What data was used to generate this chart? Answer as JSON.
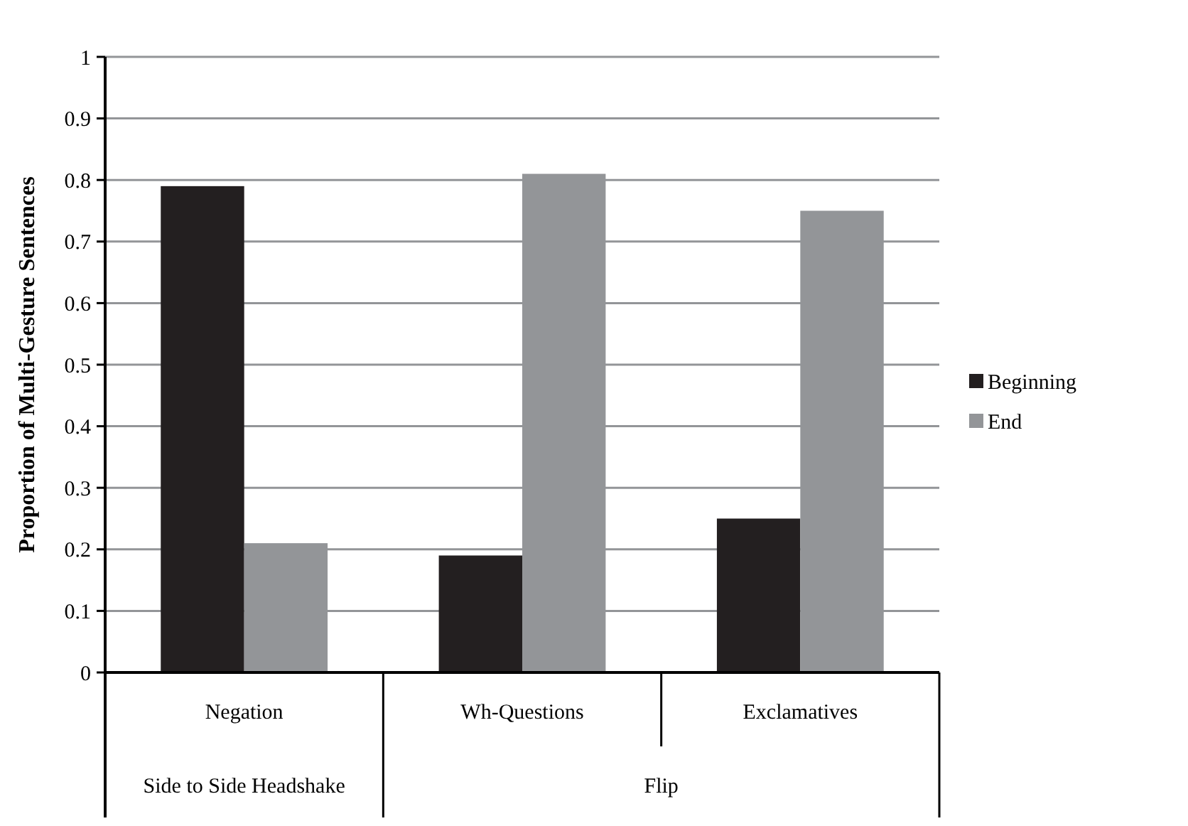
{
  "chart_data": {
    "type": "bar",
    "ylabel": "Proportion of Multi-Gesture Sentences",
    "categories": [
      "Negation",
      "Wh-Questions",
      "Exclamatives"
    ],
    "series": [
      {
        "name": "Beginning",
        "color": "#231f20",
        "values": [
          0.79,
          0.19,
          0.25
        ]
      },
      {
        "name": "End",
        "color": "#939598",
        "values": [
          0.21,
          0.81,
          0.75
        ]
      }
    ],
    "annotations": [
      "Side to Side Headshake",
      "Flip"
    ],
    "ylim": [
      0,
      1
    ],
    "yticks": [
      0,
      0.1,
      0.2,
      0.3,
      0.4,
      0.5,
      0.6,
      0.7,
      0.8,
      0.9,
      1
    ],
    "grid": "y",
    "legend": "right"
  }
}
